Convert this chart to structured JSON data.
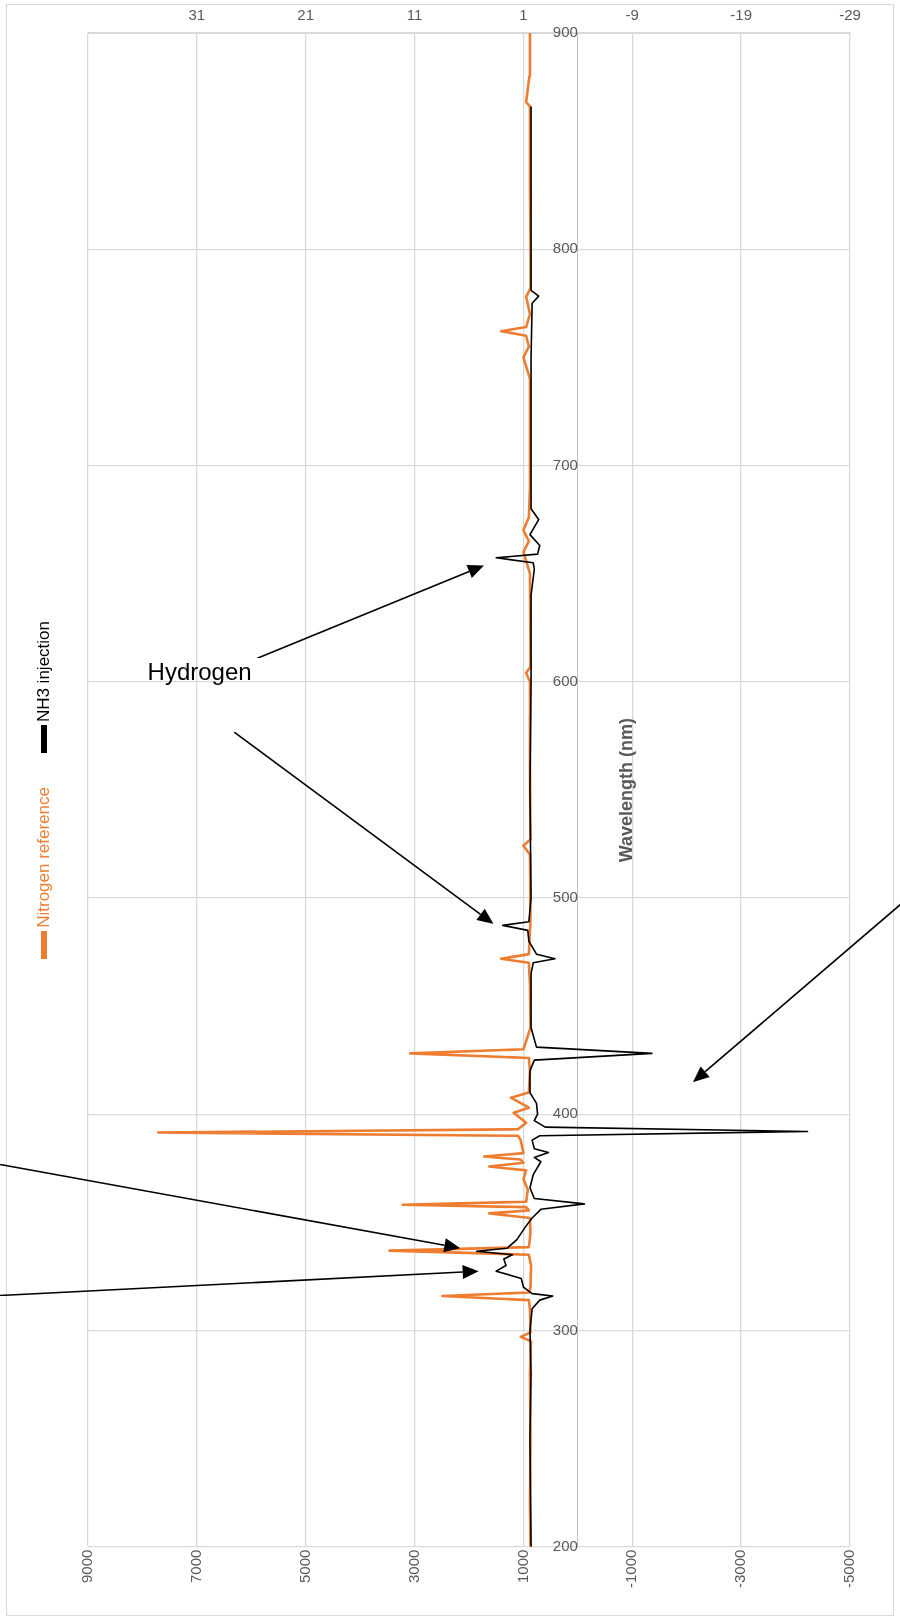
{
  "chart_data": {
    "type": "line",
    "orientation": "horizontal",
    "ylabel": "Wavelength (nm)",
    "annotations": [
      "Hydrogen"
    ],
    "ylim": [
      200,
      900
    ],
    "yticks": [
      200,
      300,
      400,
      500,
      600,
      700,
      800,
      900
    ],
    "xlim": [
      9000,
      -5000
    ],
    "xticks": [
      9000,
      7000,
      5000,
      3000,
      1000,
      -1000,
      -3000,
      -5000
    ],
    "x2lim": [
      41,
      -29
    ],
    "x2ticks": [
      31,
      21,
      11,
      1,
      -9,
      -19,
      -29
    ],
    "grid": true,
    "legend": "left",
    "marker": "none",
    "line_style": "solid",
    "series": [
      {
        "name": "Nitrogen reference",
        "color": "#ed7d31",
        "x": [
          200,
          220,
          250,
          280,
          295,
          297,
          299,
          310,
          314,
          315.9,
          317.5,
          320,
          330,
          335,
          336.9,
          338.5,
          345,
          352,
          354.1,
          355.5,
          357,
          358.1,
          359.5,
          365,
          370,
          374,
          375.8,
          377.5,
          379,
          380.4,
          382,
          388,
          390,
          391.5,
          393,
          396,
          400.7,
          403,
          407.6,
          410,
          420,
          426,
          428.1,
          430,
          440,
          460,
          470,
          471.9,
          474,
          490,
          520,
          524.2,
          527,
          560,
          600,
          604,
          607,
          650,
          660,
          665,
          670,
          676,
          690,
          740,
          750,
          755,
          760,
          762.1,
          764,
          770,
          778,
          782,
          800,
          830,
          866,
          868,
          880,
          900
        ],
        "values": [
          870,
          880,
          870,
          880,
          860,
          1050,
          870,
          880,
          900,
          2490,
          900,
          870,
          860,
          900,
          3460,
          900,
          870,
          880,
          1630,
          900,
          950,
          3220,
          950,
          920,
          1000,
          950,
          1630,
          1000,
          1050,
          1720,
          1000,
          1050,
          1100,
          7710,
          1100,
          950,
          1180,
          900,
          1230,
          900,
          880,
          900,
          3080,
          1000,
          870,
          880,
          900,
          1410,
          900,
          870,
          880,
          1000,
          870,
          880,
          880,
          950,
          870,
          880,
          1000,
          900,
          1000,
          900,
          880,
          880,
          1000,
          900,
          950,
          1410,
          950,
          880,
          950,
          870,
          870,
          880,
          880,
          950,
          890,
          880
        ]
      },
      {
        "name": "NH3 injection",
        "color": "#000000",
        "axis": "x2",
        "x": [
          200,
          250,
          280,
          300,
          310,
          314,
          315.9,
          317,
          320,
          324,
          327.4,
          330,
          333,
          335,
          336.6,
          338,
          342,
          348,
          352,
          356,
          358.5,
          361,
          366,
          372,
          378,
          380,
          382.3,
          384,
          388,
          390,
          392,
          394,
          397,
          400,
          405,
          410,
          420,
          425,
          428.1,
          431,
          440,
          465,
          470,
          471.9,
          474,
          480,
          485,
          487.3,
          489,
          500,
          550,
          600,
          640,
          652,
          655,
          657.3,
          659,
          663,
          668,
          675,
          680,
          700,
          750,
          775,
          778.3,
          781,
          820,
          866
        ],
        "values": [
          0.3,
          0.4,
          0.3,
          0.4,
          0.2,
          -0.5,
          -1.7,
          0.2,
          1.0,
          1.2,
          3.5,
          2.6,
          2.8,
          2.0,
          5.3,
          2.5,
          1.6,
          0.8,
          0.2,
          -0.6,
          -4.6,
          0,
          0.4,
          0.1,
          -0.6,
          0,
          -1.3,
          0,
          0.2,
          -0.5,
          -25.1,
          -1.0,
          0,
          -0.3,
          -0.2,
          0.4,
          0.4,
          0,
          -10.8,
          -0.2,
          0.3,
          0.3,
          0.1,
          -1.9,
          -0.2,
          0.5,
          0.6,
          2.9,
          0.5,
          0.3,
          0.4,
          0.3,
          0.3,
          0,
          0.1,
          3.5,
          -0.3,
          -0.5,
          0.4,
          -0.4,
          0.3,
          0.3,
          0.3,
          0.2,
          -0.4,
          0.3,
          0.3,
          0.3
        ]
      }
    ]
  }
}
